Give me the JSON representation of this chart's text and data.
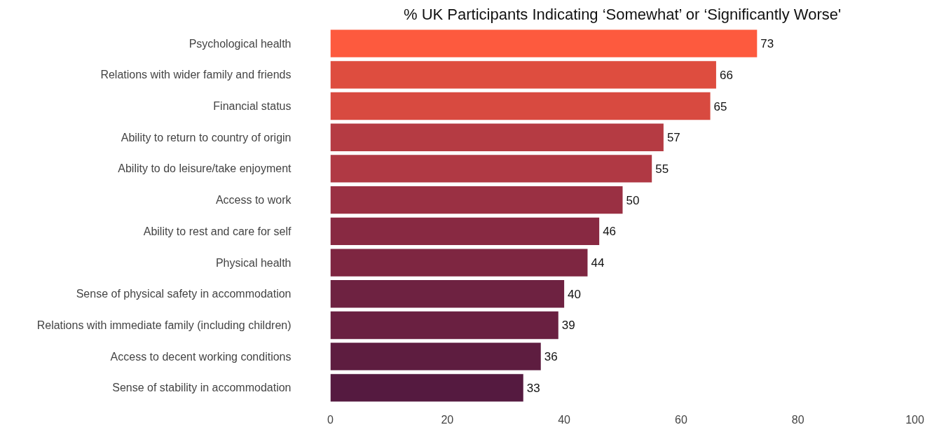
{
  "chart_data": {
    "type": "bar",
    "orientation": "horizontal",
    "title": "% UK Participants Indicating ‘Somewhat’ or ‘Significantly Worse'",
    "categories": [
      "Psychological health",
      "Relations with wider family and friends",
      "Financial status",
      "Ability to return to country of origin",
      "Ability to do leisure/take enjoyment",
      "Access to work",
      "Ability to rest and care for self",
      "Physical health",
      "Sense of physical safety in accommodation",
      "Relations with immediate family (including children)",
      "Access to decent working conditions",
      "Sense of stability in accommodation"
    ],
    "values": [
      73,
      66,
      65,
      57,
      55,
      50,
      46,
      44,
      40,
      39,
      36,
      33
    ],
    "colors": [
      "#fd5a3e",
      "#de4d3f",
      "#d84a40",
      "#b53b43",
      "#b03944",
      "#9a3043",
      "#882942",
      "#7e2641",
      "#6e2241",
      "#6a2041",
      "#5e1d40",
      "#551a40"
    ],
    "xlim": [
      0,
      100
    ],
    "xticks": [
      0,
      20,
      40,
      60,
      80,
      100
    ],
    "data_labels": true
  }
}
